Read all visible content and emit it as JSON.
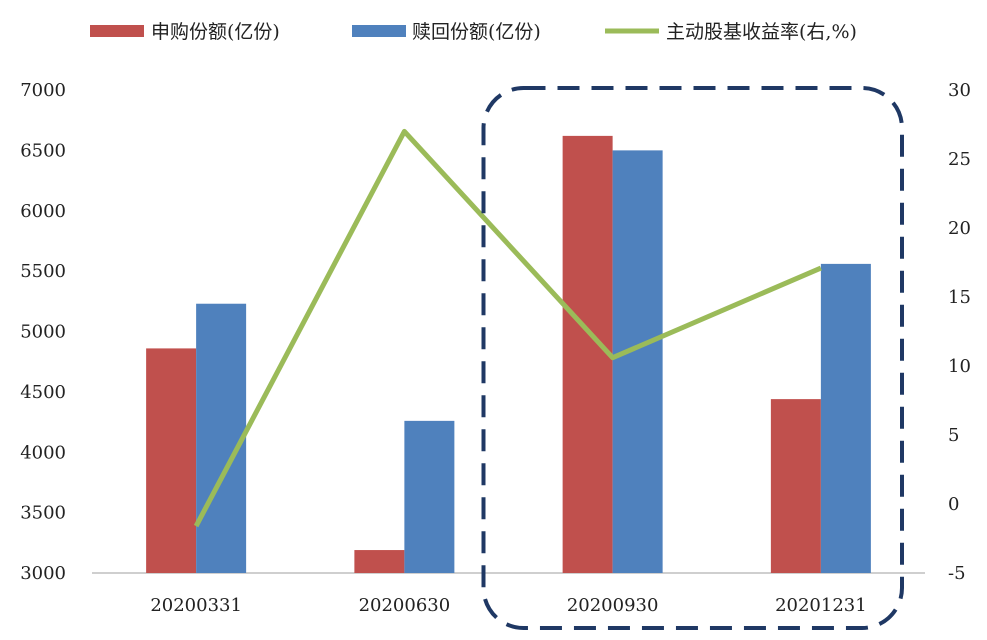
{
  "chart_data": {
    "type": "bar+line",
    "categories": [
      "20200331",
      "20200630",
      "20200930",
      "20201231"
    ],
    "series": [
      {
        "name": "申购份额(亿份)",
        "type": "bar",
        "axis": "left",
        "color": "#C0504D",
        "values": [
          4860,
          3190,
          6620,
          4440
        ]
      },
      {
        "name": "赎回份额(亿份)",
        "type": "bar",
        "axis": "left",
        "color": "#4F81BD",
        "values": [
          5230,
          4260,
          6500,
          5560
        ]
      },
      {
        "name": "主动股基收益率(右,%)",
        "type": "line",
        "axis": "right",
        "color": "#9BBB59",
        "values": [
          -1.6,
          27.0,
          10.6,
          17.1
        ]
      }
    ],
    "y_left": {
      "min": 3000,
      "max": 7000,
      "ticks": [
        "3000",
        "3500",
        "4000",
        "4500",
        "5000",
        "5500",
        "6000",
        "6500",
        "7000"
      ]
    },
    "y_right": {
      "min": -5,
      "max": 30,
      "ticks": [
        "-5",
        "0",
        "5",
        "10",
        "15",
        "20",
        "25",
        "30"
      ]
    },
    "grid": false,
    "legend_position": "top",
    "highlight": {
      "style": "dashed-rounded-box",
      "color": "#1F3864",
      "categories": [
        "20200930",
        "20201231"
      ]
    }
  }
}
